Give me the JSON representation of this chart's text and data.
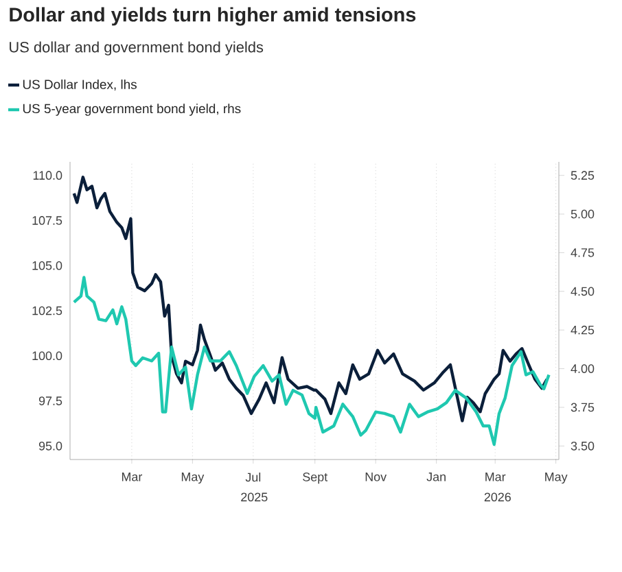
{
  "chart_data": {
    "type": "line",
    "title": "Dollar and yields turn higher amid tensions",
    "subtitle": "US dollar and government bond yields",
    "series": [
      {
        "name": "US Dollar Index, lhs",
        "color": "#0b1f3a",
        "x": [
          "2025-01-02",
          "2025-01-05",
          "2025-01-11",
          "2025-01-15",
          "2025-01-20",
          "2025-01-25",
          "2025-01-29",
          "2025-02-02",
          "2025-02-07",
          "2025-02-14",
          "2025-02-19",
          "2025-02-23",
          "2025-02-28",
          "2025-03-02",
          "2025-03-07",
          "2025-03-14",
          "2025-03-21",
          "2025-03-25",
          "2025-03-30",
          "2025-04-03",
          "2025-04-07",
          "2025-04-10",
          "2025-04-15",
          "2025-04-20",
          "2025-04-24",
          "2025-05-01",
          "2025-05-06",
          "2025-05-09",
          "2025-05-13",
          "2025-05-19",
          "2025-05-24",
          "2025-05-31",
          "2025-06-07",
          "2025-06-14",
          "2025-06-21",
          "2025-06-29",
          "2025-07-07",
          "2025-07-14",
          "2025-07-22",
          "2025-07-30",
          "2025-08-05",
          "2025-08-15",
          "2025-08-24",
          "2025-08-31",
          "2025-09-02",
          "2025-09-11",
          "2025-09-17",
          "2025-09-25",
          "2025-10-02",
          "2025-10-09",
          "2025-10-16",
          "2025-10-25",
          "2025-11-03",
          "2025-11-10",
          "2025-11-19",
          "2025-11-28",
          "2025-12-10",
          "2025-12-19",
          "2025-12-30",
          "2026-01-08",
          "2026-01-15",
          "2026-01-22",
          "2026-01-27",
          "2026-02-01",
          "2026-02-07",
          "2026-02-14",
          "2026-02-19",
          "2026-02-28",
          "2026-03-05",
          "2026-03-09",
          "2026-03-16",
          "2026-03-22",
          "2026-03-28",
          "2026-04-03",
          "2026-04-10",
          "2026-04-17",
          "2026-04-22"
        ],
        "values": [
          109.0,
          108.5,
          109.9,
          109.2,
          109.4,
          108.2,
          108.7,
          109.0,
          108.0,
          107.4,
          107.1,
          106.5,
          107.6,
          104.6,
          103.8,
          103.6,
          104.0,
          104.5,
          104.1,
          102.2,
          102.8,
          100.0,
          99.0,
          98.5,
          99.7,
          99.5,
          100.3,
          101.7,
          100.9,
          100.0,
          99.2,
          99.6,
          98.7,
          98.2,
          97.8,
          96.8,
          97.6,
          98.5,
          97.4,
          99.9,
          98.7,
          98.2,
          98.3,
          98.1,
          98.1,
          97.6,
          96.8,
          98.5,
          97.9,
          99.5,
          98.7,
          99.0,
          100.3,
          99.6,
          100.1,
          99.0,
          98.6,
          98.1,
          98.5,
          99.1,
          99.5,
          97.7,
          96.4,
          97.7,
          97.4,
          96.9,
          97.9,
          98.7,
          99.0,
          100.3,
          99.7,
          100.1,
          100.4,
          99.6,
          98.7,
          98.2,
          98.7
        ]
      },
      {
        "name": "US 5-year government bond yield, rhs",
        "color": "#1fc8b0",
        "axis": "y2",
        "x": [
          "2025-01-02",
          "2025-01-09",
          "2025-01-12",
          "2025-01-15",
          "2025-01-22",
          "2025-01-27",
          "2025-02-03",
          "2025-02-10",
          "2025-02-14",
          "2025-02-19",
          "2025-02-23",
          "2025-03-01",
          "2025-03-05",
          "2025-03-12",
          "2025-03-21",
          "2025-03-28",
          "2025-04-01",
          "2025-04-04",
          "2025-04-10",
          "2025-04-17",
          "2025-04-24",
          "2025-04-30",
          "2025-05-06",
          "2025-05-13",
          "2025-05-19",
          "2025-05-29",
          "2025-06-07",
          "2025-06-14",
          "2025-06-25",
          "2025-07-02",
          "2025-07-11",
          "2025-07-20",
          "2025-07-27",
          "2025-08-03",
          "2025-08-10",
          "2025-08-19",
          "2025-08-26",
          "2025-09-01",
          "2025-09-02",
          "2025-09-09",
          "2025-09-20",
          "2025-09-29",
          "2025-10-09",
          "2025-10-17",
          "2025-10-22",
          "2025-11-01",
          "2025-11-10",
          "2025-11-19",
          "2025-11-26",
          "2025-12-05",
          "2025-12-14",
          "2025-12-23",
          "2026-01-02",
          "2026-01-11",
          "2026-01-20",
          "2026-01-31",
          "2026-02-10",
          "2026-02-17",
          "2026-02-23",
          "2026-02-28",
          "2026-03-05",
          "2026-03-11",
          "2026-03-18",
          "2026-03-27",
          "2026-04-01",
          "2026-04-08",
          "2026-04-15",
          "2026-04-19",
          "2026-04-24"
        ],
        "values": [
          4.43,
          4.47,
          4.59,
          4.47,
          4.43,
          4.32,
          4.31,
          4.38,
          4.29,
          4.4,
          4.32,
          4.05,
          4.02,
          4.07,
          4.05,
          4.1,
          3.72,
          3.72,
          4.14,
          3.96,
          4.01,
          3.74,
          3.96,
          4.14,
          4.05,
          4.05,
          4.11,
          4.02,
          3.84,
          3.95,
          4.02,
          3.92,
          3.96,
          3.77,
          3.86,
          3.83,
          3.71,
          3.68,
          3.75,
          3.59,
          3.63,
          3.77,
          3.69,
          3.57,
          3.6,
          3.72,
          3.71,
          3.69,
          3.59,
          3.77,
          3.69,
          3.72,
          3.74,
          3.78,
          3.86,
          3.81,
          3.72,
          3.63,
          3.63,
          3.51,
          3.71,
          3.81,
          4.02,
          4.11,
          3.96,
          3.98,
          3.9,
          3.87,
          3.96
        ]
      }
    ],
    "xlim": [
      "2024-12-29",
      "2026-05-04"
    ],
    "xticks": [
      {
        "value": "2025-03-01",
        "label": "Mar"
      },
      {
        "value": "2025-05-01",
        "label": "May"
      },
      {
        "value": "2025-07-01",
        "label": "Jul"
      },
      {
        "value": "2025-09-01",
        "label": "Sept"
      },
      {
        "value": "2025-11-01",
        "label": "Nov"
      },
      {
        "value": "2026-01-01",
        "label": "Jan"
      },
      {
        "value": "2026-03-01",
        "label": "Mar"
      },
      {
        "value": "2026-05-01",
        "label": "May"
      }
    ],
    "ylim": [
      94.25,
      110.75
    ],
    "yticks": [
      {
        "value": 95,
        "label": "95.0"
      },
      {
        "value": 97.5,
        "label": "97.5"
      },
      {
        "value": 100,
        "label": "100.0"
      },
      {
        "value": 102.5,
        "label": "102.5"
      },
      {
        "value": 105,
        "label": "105.0"
      },
      {
        "value": 107.5,
        "label": "107.5"
      },
      {
        "value": 110,
        "label": "110.0"
      }
    ],
    "y2lim": [
      3.4125,
      5.3375
    ],
    "y2ticks": [
      {
        "value": 3.5,
        "label": "3.50"
      },
      {
        "value": 3.75,
        "label": "3.75"
      },
      {
        "value": 4,
        "label": "4.00"
      },
      {
        "value": 4.25,
        "label": "4.25"
      },
      {
        "value": 4.5,
        "label": "4.50"
      },
      {
        "value": 4.75,
        "label": "4.75"
      },
      {
        "value": 5,
        "label": "5.00"
      },
      {
        "value": 5.25,
        "label": "5.25"
      }
    ],
    "annotations": [
      "2025",
      "2026"
    ],
    "grid": "x",
    "legend": "top left",
    "line_style": "solid",
    "marker": "none"
  }
}
